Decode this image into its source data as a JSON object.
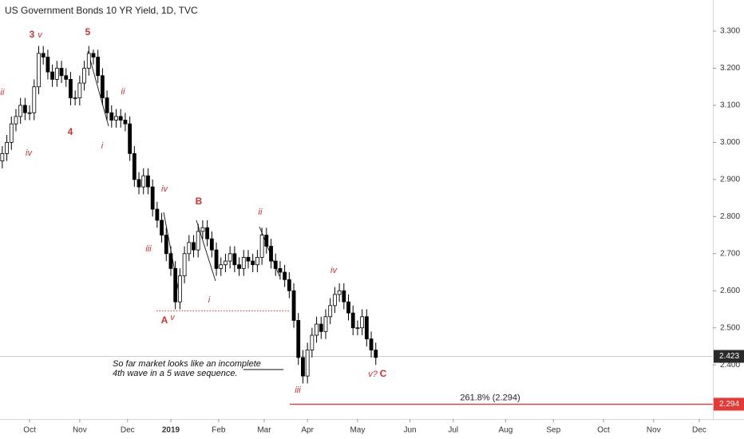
{
  "chart_data": {
    "type": "candlestick",
    "title": "US Government Bonds 10 YR Yield, 1D, TVC",
    "x": [
      0,
      2,
      4,
      6,
      8,
      10,
      12,
      14,
      16,
      18,
      20,
      22,
      24,
      26,
      28,
      30,
      32,
      34,
      36,
      38,
      40,
      42,
      44,
      46,
      48,
      50,
      52,
      54,
      56,
      58,
      60,
      62,
      64,
      66,
      68,
      70,
      72,
      74,
      76,
      78,
      80,
      82,
      84,
      86,
      88,
      90,
      92,
      94,
      96,
      98,
      100,
      102,
      104,
      106,
      108,
      110,
      112,
      114,
      116,
      118,
      120,
      122,
      124,
      126,
      128,
      130,
      132,
      134,
      136,
      138,
      140,
      142,
      144,
      146,
      148,
      150,
      152,
      154,
      156,
      158,
      160,
      162,
      164
    ],
    "open": [
      2.95,
      2.97,
      3.0,
      3.05,
      3.07,
      3.1,
      3.08,
      3.08,
      3.15,
      3.24,
      3.23,
      3.19,
      3.17,
      3.2,
      3.18,
      3.17,
      3.12,
      3.12,
      3.16,
      3.2,
      3.24,
      3.23,
      3.18,
      3.12,
      3.08,
      3.06,
      3.07,
      3.06,
      3.05,
      2.97,
      2.9,
      2.88,
      2.91,
      2.88,
      2.82,
      2.79,
      2.75,
      2.7,
      2.66,
      2.57,
      2.64,
      2.7,
      2.73,
      2.71,
      2.76,
      2.77,
      2.74,
      2.71,
      2.66,
      2.67,
      2.68,
      2.7,
      2.67,
      2.66,
      2.69,
      2.68,
      2.67,
      2.69,
      2.75,
      2.72,
      2.68,
      2.66,
      2.65,
      2.63,
      2.6,
      2.52,
      2.42,
      2.37,
      2.44,
      2.48,
      2.51,
      2.49,
      2.53,
      2.56,
      2.59,
      2.6,
      2.57,
      2.54,
      2.5,
      2.5,
      2.53,
      2.47,
      2.44
    ],
    "high": [
      2.99,
      3.02,
      3.07,
      3.09,
      3.12,
      3.12,
      3.1,
      3.17,
      3.26,
      3.26,
      3.25,
      3.21,
      3.22,
      3.22,
      3.2,
      3.19,
      3.14,
      3.18,
      3.22,
      3.26,
      3.25,
      3.25,
      3.2,
      3.14,
      3.1,
      3.09,
      3.09,
      3.08,
      3.07,
      2.99,
      2.92,
      2.93,
      2.93,
      2.9,
      2.84,
      2.81,
      2.77,
      2.72,
      2.68,
      2.66,
      2.72,
      2.75,
      2.75,
      2.78,
      2.79,
      2.79,
      2.76,
      2.73,
      2.69,
      2.7,
      2.72,
      2.72,
      2.69,
      2.71,
      2.71,
      2.7,
      2.71,
      2.77,
      2.77,
      2.74,
      2.7,
      2.68,
      2.67,
      2.65,
      2.62,
      2.54,
      2.44,
      2.46,
      2.5,
      2.53,
      2.53,
      2.55,
      2.58,
      2.61,
      2.62,
      2.62,
      2.59,
      2.56,
      2.52,
      2.55,
      2.55,
      2.49,
      2.46
    ],
    "low": [
      2.93,
      2.95,
      2.98,
      3.03,
      3.05,
      3.06,
      3.06,
      3.06,
      3.13,
      3.21,
      3.17,
      3.15,
      3.15,
      3.16,
      3.15,
      3.1,
      3.1,
      3.1,
      3.14,
      3.18,
      3.21,
      3.16,
      3.1,
      3.06,
      3.04,
      3.04,
      3.04,
      3.03,
      2.95,
      2.88,
      2.86,
      2.86,
      2.86,
      2.8,
      2.77,
      2.73,
      2.68,
      2.64,
      2.55,
      2.55,
      2.62,
      2.68,
      2.69,
      2.69,
      2.74,
      2.72,
      2.69,
      2.64,
      2.64,
      2.65,
      2.66,
      2.65,
      2.64,
      2.64,
      2.66,
      2.65,
      2.65,
      2.67,
      2.7,
      2.66,
      2.64,
      2.63,
      2.61,
      2.58,
      2.5,
      2.4,
      2.35,
      2.35,
      2.42,
      2.46,
      2.47,
      2.47,
      2.51,
      2.54,
      2.57,
      2.55,
      2.52,
      2.48,
      2.48,
      2.48,
      2.45,
      2.42,
      2.4
    ],
    "close": [
      2.97,
      3.0,
      3.05,
      3.07,
      3.1,
      3.08,
      3.08,
      3.15,
      3.24,
      3.23,
      3.19,
      3.17,
      3.2,
      3.18,
      3.17,
      3.12,
      3.12,
      3.16,
      3.2,
      3.24,
      3.23,
      3.18,
      3.12,
      3.08,
      3.06,
      3.07,
      3.06,
      3.05,
      2.97,
      2.9,
      2.88,
      2.91,
      2.88,
      2.82,
      2.79,
      2.75,
      2.7,
      2.66,
      2.57,
      2.64,
      2.7,
      2.73,
      2.71,
      2.76,
      2.77,
      2.74,
      2.71,
      2.66,
      2.67,
      2.68,
      2.7,
      2.67,
      2.66,
      2.69,
      2.68,
      2.67,
      2.69,
      2.75,
      2.72,
      2.68,
      2.66,
      2.65,
      2.63,
      2.6,
      2.52,
      2.42,
      2.37,
      2.44,
      2.48,
      2.51,
      2.49,
      2.53,
      2.56,
      2.59,
      2.6,
      2.57,
      2.54,
      2.5,
      2.5,
      2.53,
      2.47,
      2.44,
      2.42
    ],
    "up_color": "#ffffff",
    "down_color": "#000000",
    "xlim": [
      -1,
      312
    ],
    "xticks": [
      {
        "value": 12,
        "label": "Oct"
      },
      {
        "value": 34,
        "label": "Nov"
      },
      {
        "value": 55,
        "label": "Dec"
      },
      {
        "value": 74,
        "label": "2019"
      },
      {
        "value": 95,
        "label": "Feb"
      },
      {
        "value": 115,
        "label": "Mar"
      },
      {
        "value": 134,
        "label": "Apr"
      },
      {
        "value": 156,
        "label": "May"
      },
      {
        "value": 179,
        "label": "Jun"
      },
      {
        "value": 198,
        "label": "Jul"
      },
      {
        "value": 221,
        "label": "Aug"
      },
      {
        "value": 242,
        "label": "Sep"
      },
      {
        "value": 264,
        "label": "Oct"
      },
      {
        "value": 286,
        "label": "Nov"
      },
      {
        "value": 306,
        "label": "Dec"
      }
    ],
    "ylim": [
      2.254,
      3.384
    ],
    "yticks": [
      {
        "value": 2.4,
        "label": "2.400"
      },
      {
        "value": 2.5,
        "label": "2.500"
      },
      {
        "value": 2.6,
        "label": "2.600"
      },
      {
        "value": 2.7,
        "label": "2.700"
      },
      {
        "value": 2.8,
        "label": "2.800"
      },
      {
        "value": 2.9,
        "label": "2.900"
      },
      {
        "value": 3.0,
        "label": "3.000"
      },
      {
        "value": 3.1,
        "label": "3.100"
      },
      {
        "value": 3.2,
        "label": "3.200"
      },
      {
        "value": 3.3,
        "label": "3.300"
      }
    ],
    "last_price": 2.423,
    "fib_level": {
      "value": 2.294,
      "label": "261.8% (2.294)",
      "axis_label": "2.294",
      "color": "#e53935"
    },
    "wave_labels": [
      "3",
      "v",
      "5",
      "ii",
      "iv",
      "4",
      "ii",
      "i",
      "iv",
      "B",
      "iii",
      "A",
      "v",
      "i",
      "ii",
      "iv",
      "iii",
      "v?",
      "C"
    ],
    "note": [
      "So far market looks like an incomplete",
      "4th wave in a 5 wave sequence."
    ]
  }
}
